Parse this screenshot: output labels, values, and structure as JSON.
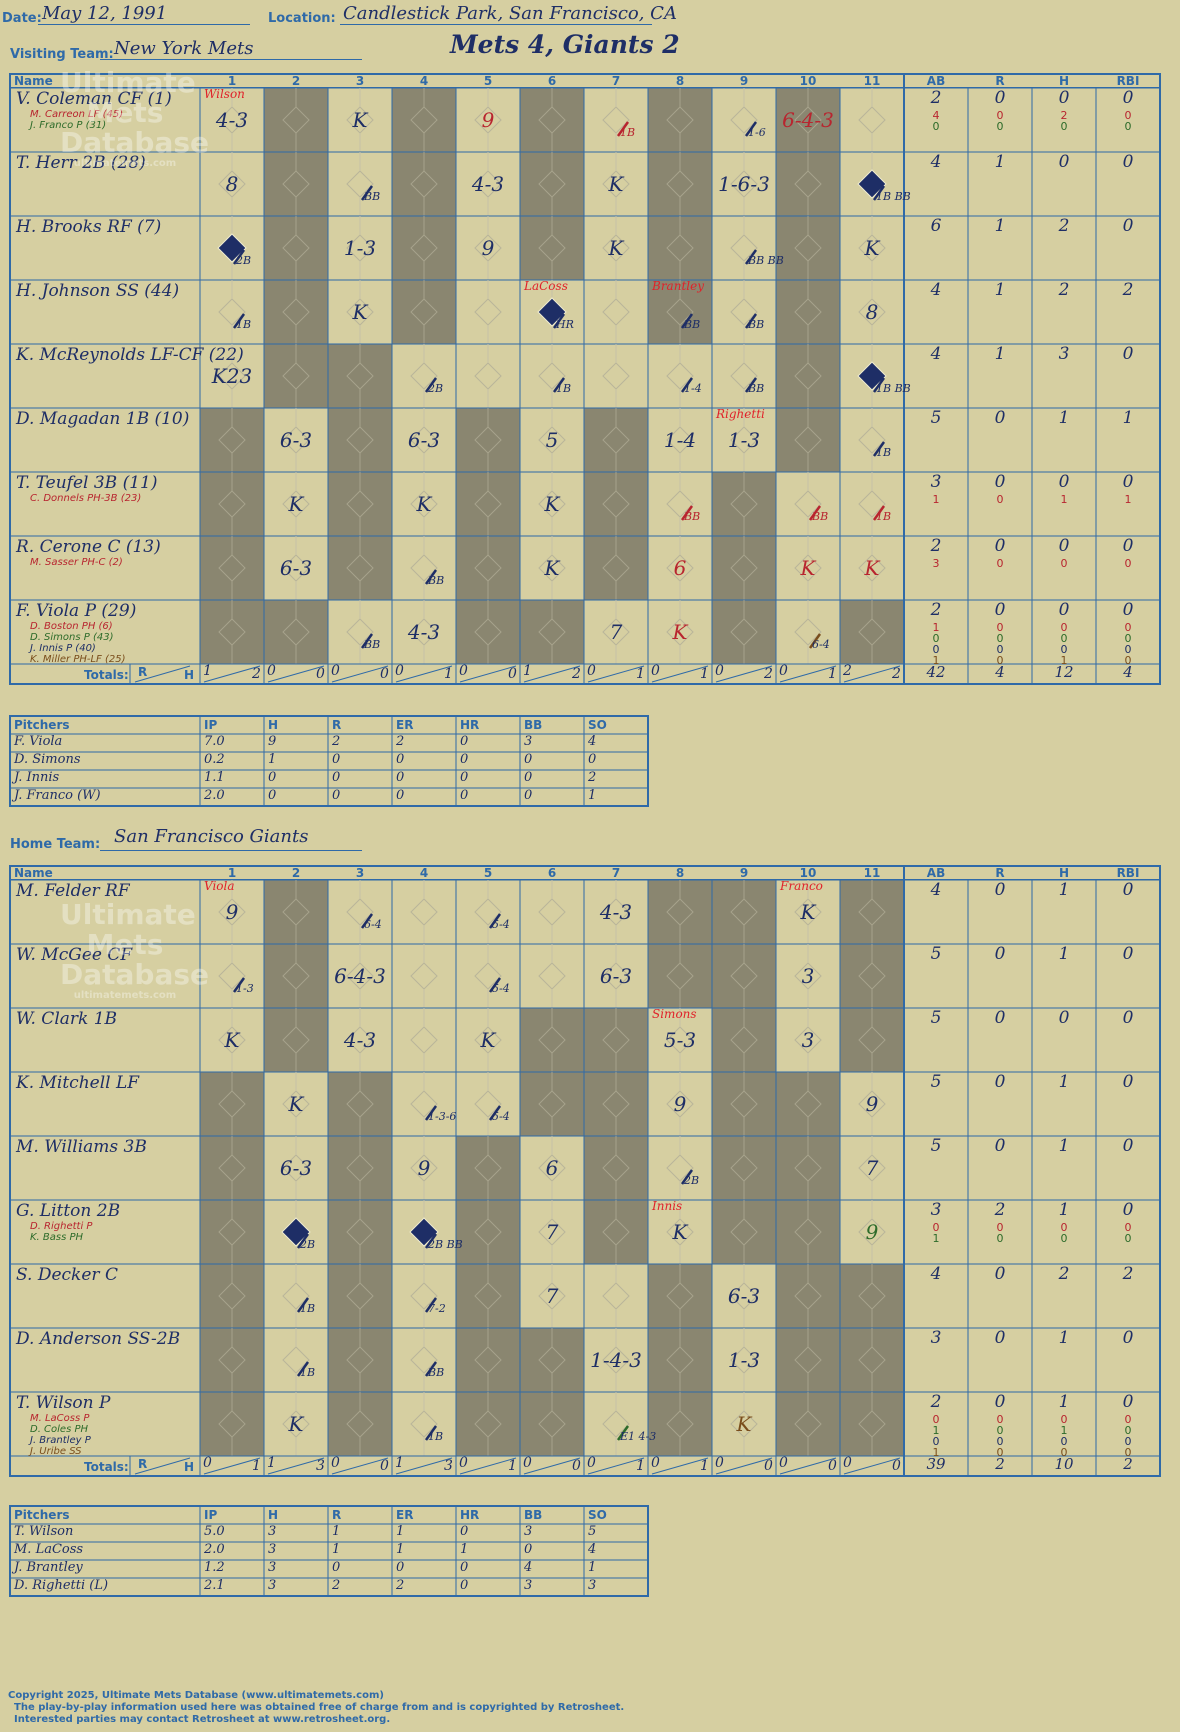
{
  "header": {
    "date_label": "Date:",
    "date": "May 12, 1991",
    "location_label": "Location:",
    "location": "Candlestick Park, San Francisco, CA",
    "visiting_label": "Visiting Team:",
    "visiting_team": "New York Mets",
    "final_score": "Mets 4, Giants 2",
    "home_label": "Home Team:",
    "home_team": "San Francisco Giants"
  },
  "columns": {
    "name": "Name",
    "innings": [
      "1",
      "2",
      "3",
      "4",
      "5",
      "6",
      "7",
      "8",
      "9",
      "10",
      "11"
    ],
    "stats": [
      "AB",
      "R",
      "H",
      "RBI"
    ]
  },
  "visitors": {
    "batters": [
      {
        "name": "V. Coleman CF (1)",
        "subs": [
          {
            "text": "M. Carreon LF (45)",
            "color": "#b8252f"
          },
          {
            "text": "J. Franco P (31)",
            "color": "#2d6b2a"
          }
        ],
        "stats": [
          "2",
          "0",
          "0",
          "0"
        ],
        "sub_stats": [
          [
            "4",
            "0",
            "2",
            "0"
          ],
          [
            "0",
            "0",
            "0",
            "0"
          ]
        ]
      },
      {
        "name": "T. Herr 2B (28)",
        "subs": [],
        "stats": [
          "4",
          "1",
          "0",
          "0"
        ],
        "sub_stats": []
      },
      {
        "name": "H. Brooks RF (7)",
        "subs": [],
        "stats": [
          "6",
          "1",
          "2",
          "0"
        ],
        "sub_stats": []
      },
      {
        "name": "H. Johnson SS (44)",
        "subs": [],
        "stats": [
          "4",
          "1",
          "2",
          "2"
        ],
        "sub_stats": []
      },
      {
        "name": "K. McReynolds LF-CF (22)",
        "subs": [],
        "stats": [
          "4",
          "1",
          "3",
          "0"
        ],
        "sub_stats": []
      },
      {
        "name": "D. Magadan 1B (10)",
        "subs": [],
        "stats": [
          "5",
          "0",
          "1",
          "1"
        ],
        "sub_stats": []
      },
      {
        "name": "T. Teufel 3B (11)",
        "subs": [
          {
            "text": "C. Donnels PH-3B (23)",
            "color": "#b8252f"
          }
        ],
        "stats": [
          "3",
          "0",
          "0",
          "0"
        ],
        "sub_stats": [
          [
            "1",
            "0",
            "1",
            "1"
          ]
        ]
      },
      {
        "name": "R. Cerone C (13)",
        "subs": [
          {
            "text": "M. Sasser PH-C (2)",
            "color": "#b8252f"
          }
        ],
        "stats": [
          "2",
          "0",
          "0",
          "0"
        ],
        "sub_stats": [
          [
            "3",
            "0",
            "0",
            "0"
          ]
        ]
      },
      {
        "name": "F. Viola P (29)",
        "subs": [
          {
            "text": "D. Boston PH (6)",
            "color": "#b8252f"
          },
          {
            "text": "D. Simons P (43)",
            "color": "#2d6b2a"
          },
          {
            "text": "J. Innis P (40)",
            "color": "#1e2e66"
          },
          {
            "text": "K. Miller PH-LF (25)",
            "color": "#7a4e1c"
          }
        ],
        "stats": [
          "2",
          "0",
          "0",
          "0"
        ],
        "sub_stats": [
          [
            "1",
            "0",
            "0",
            "0"
          ],
          [
            "0",
            "0",
            "0",
            "0"
          ],
          [
            "0",
            "0",
            "0",
            "0"
          ],
          [
            "1",
            "0",
            "1",
            "0"
          ]
        ]
      }
    ],
    "totals_label": "Totals:",
    "rh_label_r": "R",
    "rh_label_h": "H",
    "inning_totals": [
      [
        "1",
        "2"
      ],
      [
        "0",
        "0"
      ],
      [
        "0",
        "0"
      ],
      [
        "0",
        "1"
      ],
      [
        "0",
        "0"
      ],
      [
        "1",
        "2"
      ],
      [
        "0",
        "1"
      ],
      [
        "0",
        "1"
      ],
      [
        "0",
        "2"
      ],
      [
        "0",
        "1"
      ],
      [
        "2",
        "2"
      ]
    ],
    "game_totals": [
      "42",
      "4",
      "12",
      "4"
    ]
  },
  "visitor_pitchers": {
    "headers": [
      "Pitchers",
      "IP",
      "H",
      "R",
      "ER",
      "HR",
      "BB",
      "SO"
    ],
    "rows": [
      [
        "F. Viola",
        "7.0",
        "9",
        "2",
        "2",
        "0",
        "3",
        "4"
      ],
      [
        "D. Simons",
        "0.2",
        "1",
        "0",
        "0",
        "0",
        "0",
        "0"
      ],
      [
        "J. Innis",
        "1.1",
        "0",
        "0",
        "0",
        "0",
        "0",
        "2"
      ],
      [
        "J. Franco (W)",
        "2.0",
        "0",
        "0",
        "0",
        "0",
        "0",
        "1"
      ]
    ]
  },
  "home": {
    "batters": [
      {
        "name": "M. Felder RF",
        "subs": [],
        "stats": [
          "4",
          "0",
          "1",
          "0"
        ],
        "sub_stats": []
      },
      {
        "name": "W. McGee CF",
        "subs": [],
        "stats": [
          "5",
          "0",
          "1",
          "0"
        ],
        "sub_stats": []
      },
      {
        "name": "W. Clark 1B",
        "subs": [],
        "stats": [
          "5",
          "0",
          "0",
          "0"
        ],
        "sub_stats": []
      },
      {
        "name": "K. Mitchell LF",
        "subs": [],
        "stats": [
          "5",
          "0",
          "1",
          "0"
        ],
        "sub_stats": []
      },
      {
        "name": "M. Williams 3B",
        "subs": [],
        "stats": [
          "5",
          "0",
          "1",
          "0"
        ],
        "sub_stats": []
      },
      {
        "name": "G. Litton 2B",
        "subs": [
          {
            "text": "D. Righetti P",
            "color": "#b8252f"
          },
          {
            "text": "K. Bass PH",
            "color": "#2d6b2a"
          }
        ],
        "stats": [
          "3",
          "2",
          "1",
          "0"
        ],
        "sub_stats": [
          [
            "0",
            "0",
            "0",
            "0"
          ],
          [
            "1",
            "0",
            "0",
            "0"
          ]
        ]
      },
      {
        "name": "S. Decker C",
        "subs": [],
        "stats": [
          "4",
          "0",
          "2",
          "2"
        ],
        "sub_stats": []
      },
      {
        "name": "D. Anderson SS-2B",
        "subs": [],
        "stats": [
          "3",
          "0",
          "1",
          "0"
        ],
        "sub_stats": []
      },
      {
        "name": "T. Wilson P",
        "subs": [
          {
            "text": "M. LaCoss P",
            "color": "#b8252f"
          },
          {
            "text": "D. Coles PH",
            "color": "#2d6b2a"
          },
          {
            "text": "J. Brantley P",
            "color": "#1e2e66"
          },
          {
            "text": "J. Uribe SS",
            "color": "#7a4e1c"
          }
        ],
        "stats": [
          "2",
          "0",
          "1",
          "0"
        ],
        "sub_stats": [
          [
            "0",
            "0",
            "0",
            "0"
          ],
          [
            "1",
            "0",
            "1",
            "0"
          ],
          [
            "0",
            "0",
            "0",
            "0"
          ],
          [
            "1",
            "0",
            "0",
            "0"
          ]
        ]
      }
    ],
    "totals_label": "Totals:",
    "rh_label_r": "R",
    "rh_label_h": "H",
    "inning_totals": [
      [
        "0",
        "1"
      ],
      [
        "1",
        "3"
      ],
      [
        "0",
        "0"
      ],
      [
        "1",
        "3"
      ],
      [
        "0",
        "1"
      ],
      [
        "0",
        "0"
      ],
      [
        "0",
        "1"
      ],
      [
        "0",
        "1"
      ],
      [
        "0",
        "0"
      ],
      [
        "0",
        "0"
      ],
      [
        "0",
        "0"
      ]
    ],
    "game_totals": [
      "39",
      "2",
      "10",
      "2"
    ]
  },
  "home_pitchers": {
    "headers": [
      "Pitchers",
      "IP",
      "H",
      "R",
      "ER",
      "HR",
      "BB",
      "SO"
    ],
    "rows": [
      [
        "T. Wilson",
        "5.0",
        "3",
        "1",
        "1",
        "0",
        "3",
        "5"
      ],
      [
        "M. LaCoss",
        "2.0",
        "3",
        "1",
        "1",
        "1",
        "0",
        "4"
      ],
      [
        "J. Brantley",
        "1.2",
        "3",
        "0",
        "0",
        "0",
        "4",
        "1"
      ],
      [
        "D. Righetti (L)",
        "2.1",
        "3",
        "2",
        "2",
        "0",
        "3",
        "3"
      ]
    ]
  },
  "plays": {
    "visitors": [
      {
        "r": 0,
        "i": 0,
        "t": "4-3"
      },
      {
        "r": 0,
        "i": 2,
        "t": "K"
      },
      {
        "r": 0,
        "i": 4,
        "t": "9",
        "c": "red"
      },
      {
        "r": 0,
        "i": 6,
        "t": "1B",
        "c": "red",
        "s": "mini"
      },
      {
        "r": 0,
        "i": 8,
        "t": "1-6",
        "s": "mini"
      },
      {
        "r": 0,
        "i": 9,
        "t": "6-4-3",
        "c": "red"
      },
      {
        "r": 1,
        "i": 0,
        "t": "8"
      },
      {
        "r": 1,
        "i": 2,
        "t": "BB",
        "s": "mini"
      },
      {
        "r": 1,
        "i": 4,
        "t": "4-3"
      },
      {
        "r": 1,
        "i": 6,
        "t": "K"
      },
      {
        "r": 1,
        "i": 8,
        "t": "1-6-3"
      },
      {
        "r": 1,
        "i": 10,
        "t": "1B BB",
        "s": "mini"
      },
      {
        "r": 2,
        "i": 0,
        "t": "2B",
        "s": "mini"
      },
      {
        "r": 2,
        "i": 2,
        "t": "1-3"
      },
      {
        "r": 2,
        "i": 4,
        "t": "9"
      },
      {
        "r": 2,
        "i": 6,
        "t": "K"
      },
      {
        "r": 2,
        "i": 8,
        "t": "BB BB",
        "s": "mini"
      },
      {
        "r": 2,
        "i": 10,
        "t": "K"
      },
      {
        "r": 3,
        "i": 0,
        "t": "1B",
        "s": "mini"
      },
      {
        "r": 3,
        "i": 2,
        "t": "K"
      },
      {
        "r": 3,
        "i": 5,
        "t": "HR",
        "s": "mini"
      },
      {
        "r": 3,
        "i": 7,
        "t": "BB",
        "s": "mini"
      },
      {
        "r": 3,
        "i": 8,
        "t": "BB",
        "s": "mini"
      },
      {
        "r": 3,
        "i": 10,
        "t": "8"
      },
      {
        "r": 4,
        "i": 0,
        "t": "K23"
      },
      {
        "r": 4,
        "i": 3,
        "t": "2B",
        "s": "mini"
      },
      {
        "r": 4,
        "i": 5,
        "t": "1B",
        "s": "mini"
      },
      {
        "r": 4,
        "i": 7,
        "t": "1-4",
        "s": "mini"
      },
      {
        "r": 4,
        "i": 8,
        "t": "BB",
        "s": "mini"
      },
      {
        "r": 4,
        "i": 10,
        "t": "1B BB",
        "s": "mini"
      },
      {
        "r": 5,
        "i": 1,
        "t": "6-3"
      },
      {
        "r": 5,
        "i": 3,
        "t": "6-3"
      },
      {
        "r": 5,
        "i": 5,
        "t": "5"
      },
      {
        "r": 5,
        "i": 7,
        "t": "1-4"
      },
      {
        "r": 5,
        "i": 8,
        "t": "1-3"
      },
      {
        "r": 5,
        "i": 10,
        "t": "1B",
        "s": "mini"
      },
      {
        "r": 6,
        "i": 1,
        "t": "K"
      },
      {
        "r": 6,
        "i": 3,
        "t": "K"
      },
      {
        "r": 6,
        "i": 5,
        "t": "K"
      },
      {
        "r": 6,
        "i": 7,
        "t": "BB",
        "c": "red",
        "s": "mini"
      },
      {
        "r": 6,
        "i": 9,
        "t": "BB",
        "c": "red",
        "s": "mini"
      },
      {
        "r": 6,
        "i": 10,
        "t": "1B",
        "c": "red",
        "s": "mini"
      },
      {
        "r": 7,
        "i": 1,
        "t": "6-3"
      },
      {
        "r": 7,
        "i": 3,
        "t": "BB",
        "s": "mini"
      },
      {
        "r": 7,
        "i": 5,
        "t": "K"
      },
      {
        "r": 7,
        "i": 7,
        "t": "6",
        "c": "red"
      },
      {
        "r": 7,
        "i": 9,
        "t": "K",
        "c": "red"
      },
      {
        "r": 7,
        "i": 10,
        "t": "K",
        "c": "red"
      },
      {
        "r": 8,
        "i": 2,
        "t": "BB",
        "s": "mini"
      },
      {
        "r": 8,
        "i": 3,
        "t": "4-3"
      },
      {
        "r": 8,
        "i": 6,
        "t": "7"
      },
      {
        "r": 8,
        "i": 7,
        "t": "K",
        "c": "red"
      },
      {
        "r": 8,
        "i": 9,
        "t": "6-4",
        "c": "brown",
        "s": "mini"
      }
    ],
    "home": [
      {
        "r": 0,
        "i": 0,
        "t": "9"
      },
      {
        "r": 0,
        "i": 2,
        "t": "6-4",
        "s": "mini"
      },
      {
        "r": 0,
        "i": 4,
        "t": "5-4",
        "s": "mini"
      },
      {
        "r": 0,
        "i": 6,
        "t": "4-3"
      },
      {
        "r": 0,
        "i": 9,
        "t": "K"
      },
      {
        "r": 1,
        "i": 0,
        "t": "1-3",
        "s": "mini"
      },
      {
        "r": 1,
        "i": 2,
        "t": "6-4-3"
      },
      {
        "r": 1,
        "i": 4,
        "t": "5-4",
        "s": "mini"
      },
      {
        "r": 1,
        "i": 6,
        "t": "6-3"
      },
      {
        "r": 1,
        "i": 9,
        "t": "3"
      },
      {
        "r": 2,
        "i": 0,
        "t": "K"
      },
      {
        "r": 2,
        "i": 2,
        "t": "4-3"
      },
      {
        "r": 2,
        "i": 4,
        "t": "K"
      },
      {
        "r": 2,
        "i": 7,
        "t": "5-3"
      },
      {
        "r": 2,
        "i": 9,
        "t": "3"
      },
      {
        "r": 3,
        "i": 1,
        "t": "K"
      },
      {
        "r": 3,
        "i": 3,
        "t": "1-3-6",
        "s": "mini"
      },
      {
        "r": 3,
        "i": 4,
        "t": "5-4",
        "s": "mini"
      },
      {
        "r": 3,
        "i": 7,
        "t": "9"
      },
      {
        "r": 3,
        "i": 10,
        "t": "9"
      },
      {
        "r": 4,
        "i": 1,
        "t": "6-3"
      },
      {
        "r": 4,
        "i": 3,
        "t": "9"
      },
      {
        "r": 4,
        "i": 5,
        "t": "6"
      },
      {
        "r": 4,
        "i": 7,
        "t": "2B",
        "s": "mini"
      },
      {
        "r": 4,
        "i": 10,
        "t": "7"
      },
      {
        "r": 5,
        "i": 1,
        "t": "2B",
        "s": "mini"
      },
      {
        "r": 5,
        "i": 3,
        "t": "2B BB",
        "s": "mini"
      },
      {
        "r": 5,
        "i": 5,
        "t": "7"
      },
      {
        "r": 5,
        "i": 7,
        "t": "K"
      },
      {
        "r": 5,
        "i": 10,
        "t": "9",
        "c": "green"
      },
      {
        "r": 6,
        "i": 1,
        "t": "1B",
        "s": "mini"
      },
      {
        "r": 6,
        "i": 3,
        "t": "7-2",
        "s": "mini"
      },
      {
        "r": 6,
        "i": 5,
        "t": "7"
      },
      {
        "r": 6,
        "i": 8,
        "t": "6-3"
      },
      {
        "r": 7,
        "i": 1,
        "t": "1B",
        "s": "mini"
      },
      {
        "r": 7,
        "i": 3,
        "t": "BB",
        "s": "mini"
      },
      {
        "r": 7,
        "i": 6,
        "t": "1-4-3"
      },
      {
        "r": 7,
        "i": 8,
        "t": "1-3"
      },
      {
        "r": 8,
        "i": 1,
        "t": "K"
      },
      {
        "r": 8,
        "i": 3,
        "t": "1B",
        "s": "mini"
      },
      {
        "r": 8,
        "i": 6,
        "t": "E1 4-3",
        "c": "green",
        "s": "mini"
      },
      {
        "r": 8,
        "i": 8,
        "t": "K",
        "c": "brown"
      }
    ]
  },
  "pitcher_notes": {
    "visitors": [
      {
        "r": 0,
        "i": 0,
        "t": "Wilson"
      },
      {
        "r": 3,
        "i": 5,
        "t": "LaCoss"
      },
      {
        "r": 3,
        "i": 7,
        "t": "Brantley"
      },
      {
        "r": 5,
        "i": 8,
        "t": "Righetti"
      }
    ],
    "home": [
      {
        "r": 0,
        "i": 0,
        "t": "Viola"
      },
      {
        "r": 0,
        "i": 9,
        "t": "Franco"
      },
      {
        "r": 2,
        "i": 7,
        "t": "Simons"
      },
      {
        "r": 5,
        "i": 7,
        "t": "Innis"
      }
    ]
  },
  "scored": {
    "visitors": [
      [
        1,
        10
      ],
      [
        2,
        0
      ],
      [
        3,
        5
      ],
      [
        4,
        10
      ]
    ],
    "home": [
      [
        5,
        1
      ],
      [
        5,
        3
      ]
    ]
  },
  "shading": {
    "visitors": [
      [
        1,
        3,
        5,
        7,
        9
      ],
      [
        1,
        3,
        5,
        7,
        9
      ],
      [
        1,
        3,
        5,
        7,
        9
      ],
      [
        1,
        3,
        7,
        9
      ],
      [
        1,
        2,
        9
      ],
      [
        0,
        2,
        4,
        6,
        9
      ],
      [
        0,
        2,
        4,
        6,
        8
      ],
      [
        0,
        2,
        4,
        6,
        8
      ],
      [
        0,
        1,
        4,
        5,
        8,
        10
      ]
    ],
    "home": [
      [
        1,
        7,
        8,
        10
      ],
      [
        1,
        7,
        8,
        10
      ],
      [
        1,
        5,
        6,
        8,
        10
      ],
      [
        0,
        2,
        5,
        6,
        8,
        9
      ],
      [
        0,
        2,
        4,
        6,
        8,
        9
      ],
      [
        0,
        2,
        4,
        6,
        8,
        9
      ],
      [
        0,
        2,
        4,
        7,
        9,
        10
      ],
      [
        0,
        2,
        4,
        5,
        7,
        9,
        10
      ],
      [
        0,
        2,
        4,
        5,
        7,
        9,
        10
      ]
    ]
  },
  "watermark": {
    "line1": "Ultimate",
    "line2": "Mets",
    "line3": "Database",
    "url": "ultimatemets.com"
  },
  "footer": {
    "line1": "Copyright 2025, Ultimate Mets Database (www.ultimatemets.com)",
    "line2": "The play-by-play information used here was obtained free of charge from and is copyrighted by Retrosheet.",
    "line3": "Interested parties may contact Retrosheet at www.retrosheet.org."
  }
}
